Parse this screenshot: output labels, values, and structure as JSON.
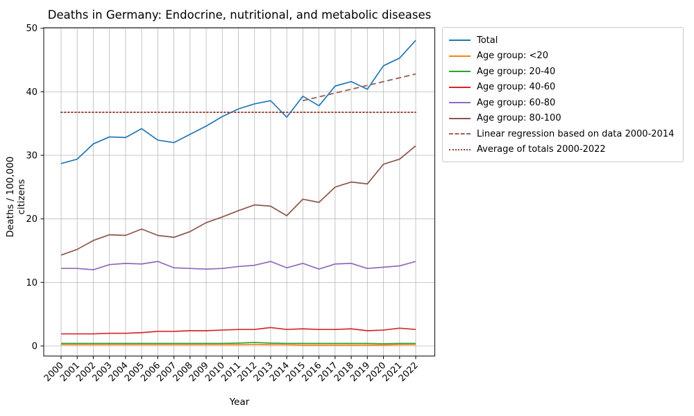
{
  "chart_data": {
    "type": "line",
    "title": "Deaths in Germany: Endocrine, nutritional, and metabolic diseases",
    "xlabel": "Year",
    "ylabel": "Deaths / 100,000 citizens",
    "x": [
      2000,
      2001,
      2002,
      2003,
      2004,
      2005,
      2006,
      2007,
      2008,
      2009,
      2010,
      2011,
      2012,
      2013,
      2014,
      2015,
      2016,
      2017,
      2018,
      2019,
      2020,
      2021,
      2022
    ],
    "ylim": [
      -1.6,
      50.1
    ],
    "yticks": [
      0,
      10,
      20,
      30,
      40,
      50
    ],
    "grid": true,
    "legend_position": "upper right",
    "series": [
      {
        "name": "Total",
        "color": "#1f77b4",
        "style": "solid",
        "values": [
          28.7,
          29.4,
          31.8,
          32.9,
          32.8,
          34.2,
          32.4,
          32.0,
          33.3,
          34.6,
          36.1,
          37.3,
          38.1,
          38.6,
          36.0,
          39.3,
          37.8,
          40.9,
          41.6,
          40.4,
          44.1,
          45.3,
          48.1
        ]
      },
      {
        "name": "Age group: <20",
        "color": "#ff7f0e",
        "style": "solid",
        "values": [
          0.2,
          0.2,
          0.2,
          0.2,
          0.2,
          0.2,
          0.2,
          0.2,
          0.2,
          0.2,
          0.2,
          0.2,
          0.25,
          0.2,
          0.2,
          0.15,
          0.15,
          0.15,
          0.15,
          0.15,
          0.15,
          0.2,
          0.2
        ]
      },
      {
        "name": "Age group: 20-40",
        "color": "#2ca02c",
        "style": "solid",
        "values": [
          0.4,
          0.4,
          0.4,
          0.4,
          0.4,
          0.4,
          0.4,
          0.4,
          0.4,
          0.4,
          0.4,
          0.45,
          0.55,
          0.45,
          0.4,
          0.4,
          0.4,
          0.4,
          0.4,
          0.4,
          0.35,
          0.4,
          0.4
        ]
      },
      {
        "name": "Age group: 40-60",
        "color": "#d62728",
        "style": "solid",
        "values": [
          1.9,
          1.9,
          1.9,
          2.0,
          2.0,
          2.1,
          2.3,
          2.3,
          2.4,
          2.4,
          2.5,
          2.6,
          2.6,
          2.9,
          2.6,
          2.7,
          2.6,
          2.6,
          2.7,
          2.4,
          2.5,
          2.8,
          2.6
        ]
      },
      {
        "name": "Age group: 60-80",
        "color": "#9467bd",
        "style": "solid",
        "values": [
          12.2,
          12.2,
          12.0,
          12.8,
          13.0,
          12.9,
          13.3,
          12.3,
          12.2,
          12.1,
          12.2,
          12.5,
          12.7,
          13.3,
          12.3,
          13.0,
          12.1,
          12.9,
          13.0,
          12.2,
          12.4,
          12.6,
          13.3
        ]
      },
      {
        "name": "Age group: 80-100",
        "color": "#8c564b",
        "style": "solid",
        "values": [
          14.3,
          15.2,
          16.6,
          17.5,
          17.4,
          18.4,
          17.4,
          17.1,
          18.0,
          19.4,
          20.3,
          21.3,
          22.2,
          22.0,
          20.5,
          23.1,
          22.6,
          25.0,
          25.8,
          25.5,
          28.6,
          29.4,
          31.5
        ]
      }
    ],
    "overlays": [
      {
        "name": "Linear regression based on data 2000-2014",
        "color": "#9d6359",
        "style": "dashed",
        "x": [
          2015,
          2022
        ],
        "values": [
          38.6,
          42.8
        ]
      },
      {
        "name": "Average of totals 2000-2022",
        "color": "#8e3f30",
        "style": "dotted",
        "x": [
          2000,
          2022
        ],
        "values": [
          36.77,
          36.77
        ]
      }
    ]
  }
}
